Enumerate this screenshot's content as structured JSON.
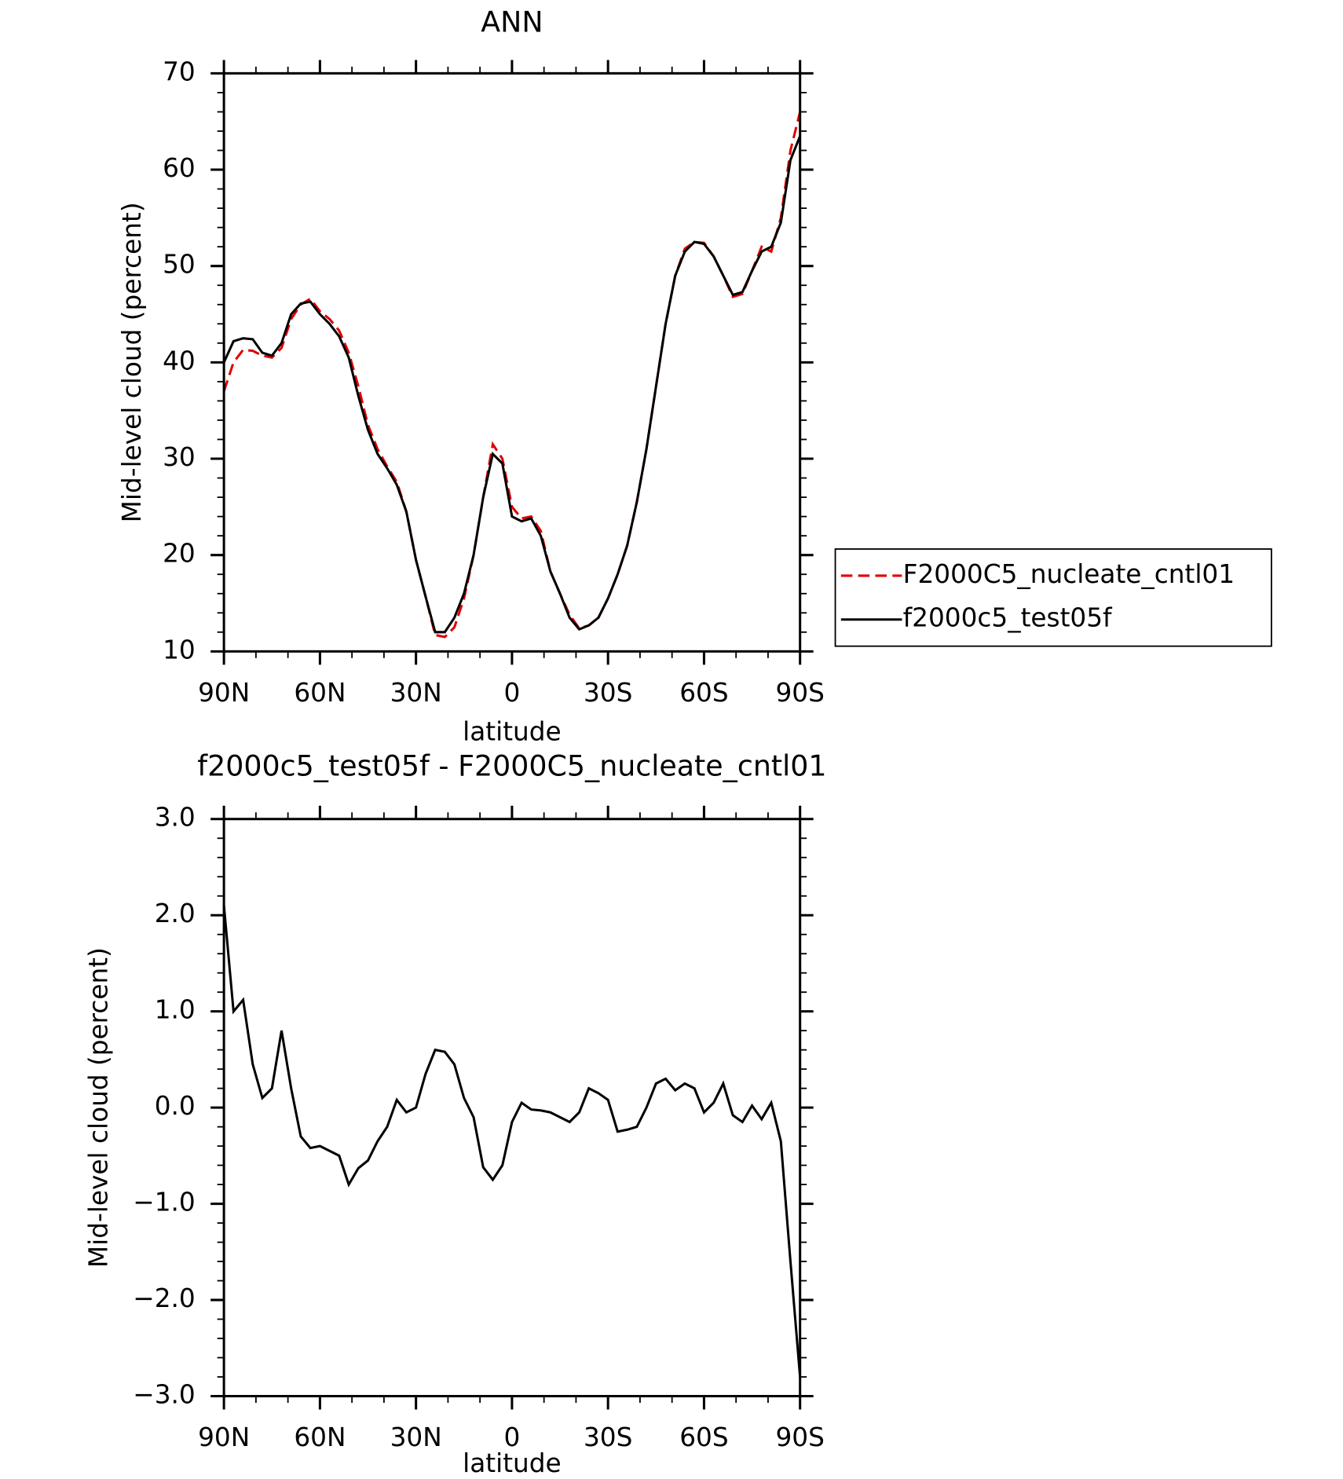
{
  "chart_data": [
    {
      "type": "line",
      "title": "ANN",
      "xlabel": "latitude",
      "ylabel": "Mid-level cloud (percent)",
      "x": [
        90,
        87,
        84,
        81,
        78,
        75,
        72,
        69,
        66,
        63,
        60,
        57,
        54,
        51,
        48,
        45,
        42,
        39,
        36,
        33,
        30,
        27,
        24,
        21,
        18,
        15,
        12,
        9,
        6,
        3,
        0,
        -3,
        -6,
        -9,
        -12,
        -15,
        -18,
        -21,
        -24,
        -27,
        -30,
        -33,
        -36,
        -39,
        -42,
        -45,
        -48,
        -51,
        -54,
        -57,
        -60,
        -63,
        -66,
        -69,
        -72,
        -75,
        -78,
        -81,
        -84,
        -87,
        -90
      ],
      "xlim": [
        90,
        -90
      ],
      "xticks": [
        {
          "value": 90,
          "label": "90N"
        },
        {
          "value": 60,
          "label": "60N"
        },
        {
          "value": 30,
          "label": "30N"
        },
        0,
        {
          "value": -30,
          "label": "30S"
        },
        {
          "value": -60,
          "label": "60S"
        },
        {
          "value": -90,
          "label": "90S"
        }
      ],
      "ylim": [
        10,
        70
      ],
      "yticks": [
        10,
        20,
        30,
        40,
        50,
        60,
        70
      ],
      "grid": false,
      "legend": "right",
      "series": [
        {
          "name": "F2000C5_nucleate_cntl01",
          "color": "#e00000",
          "dash": "dashed",
          "values": [
            37,
            40,
            41.3,
            41.2,
            40.7,
            40.5,
            41.5,
            44.5,
            46,
            46.6,
            45.3,
            44.5,
            43.3,
            41,
            37.5,
            33.5,
            31,
            29.2,
            27.6,
            24.5,
            19.5,
            15.7,
            11.7,
            11.5,
            12.5,
            15.5,
            20,
            26,
            31.5,
            30,
            25,
            23.8,
            24,
            22.5,
            18.3,
            16,
            13.8,
            12.4,
            12.7,
            13.5,
            15.5,
            18,
            21,
            25.5,
            31,
            37.5,
            44,
            49,
            51.8,
            52.5,
            52.4,
            51,
            49,
            46.8,
            47.1,
            49.5,
            52,
            51.5,
            55,
            62,
            66
          ]
        },
        {
          "name": "f2000c5_test05f",
          "color": "#000000",
          "dash": "solid",
          "values": [
            40,
            42.2,
            42.5,
            42.4,
            41,
            40.7,
            42,
            45,
            46.1,
            46.3,
            45,
            44,
            42.7,
            40.5,
            36.5,
            33,
            30.5,
            29,
            27.3,
            24.5,
            19.5,
            15.7,
            12,
            12,
            13.5,
            16,
            20,
            26,
            30.5,
            29.5,
            24,
            23.5,
            23.8,
            22,
            18.3,
            16,
            13.5,
            12.3,
            12.7,
            13.5,
            15.5,
            18,
            21,
            25.5,
            31,
            37.5,
            44,
            49,
            51.5,
            52.5,
            52.3,
            51,
            49,
            47,
            47.3,
            49.5,
            51.5,
            52,
            54.5,
            61,
            63.5
          ]
        }
      ]
    },
    {
      "type": "line",
      "title": "f2000c5_test05f - F2000C5_nucleate_cntl01",
      "xlabel": "latitude",
      "ylabel": "Mid-level cloud (percent)",
      "x": [
        90,
        87,
        84,
        81,
        78,
        75,
        72,
        69,
        66,
        63,
        60,
        57,
        54,
        51,
        48,
        45,
        42,
        39,
        36,
        33,
        30,
        27,
        24,
        21,
        18,
        15,
        12,
        9,
        6,
        3,
        0,
        -3,
        -6,
        -9,
        -12,
        -15,
        -18,
        -21,
        -24,
        -27,
        -30,
        -33,
        -36,
        -39,
        -42,
        -45,
        -48,
        -51,
        -54,
        -57,
        -60,
        -63,
        -66,
        -69,
        -72,
        -75,
        -78,
        -81,
        -84,
        -87,
        -90
      ],
      "xlim": [
        90,
        -90
      ],
      "xticks": [
        {
          "value": 90,
          "label": "90N"
        },
        {
          "value": 60,
          "label": "60N"
        },
        {
          "value": 30,
          "label": "30N"
        },
        0,
        {
          "value": -30,
          "label": "30S"
        },
        {
          "value": -60,
          "label": "60S"
        },
        {
          "value": -90,
          "label": "90S"
        }
      ],
      "ylim": [
        -3,
        3
      ],
      "yticks": [
        {
          "value": -3,
          "label": "−3.0"
        },
        {
          "value": -2,
          "label": "−2.0"
        },
        {
          "value": -1,
          "label": "−1.0"
        },
        {
          "value": 0,
          "label": "0.0"
        },
        {
          "value": 1,
          "label": "1.0"
        },
        {
          "value": 2,
          "label": "2.0"
        },
        {
          "value": 3,
          "label": "3.0"
        }
      ],
      "grid": false,
      "series": [
        {
          "color": "#000000",
          "dash": "solid",
          "values": [
            2.1,
            1.0,
            1.12,
            0.45,
            0.1,
            0.2,
            0.8,
            0.2,
            -0.3,
            -0.42,
            -0.4,
            -0.45,
            -0.5,
            -0.8,
            -0.63,
            -0.55,
            -0.35,
            -0.2,
            0.08,
            -0.05,
            0.0,
            0.35,
            0.6,
            0.58,
            0.45,
            0.1,
            -0.1,
            -0.62,
            -0.75,
            -0.6,
            -0.15,
            0.05,
            -0.02,
            -0.03,
            -0.05,
            -0.1,
            -0.15,
            -0.05,
            0.2,
            0.15,
            0.08,
            -0.25,
            -0.23,
            -0.2,
            0.0,
            0.25,
            0.3,
            0.18,
            0.25,
            0.2,
            -0.05,
            0.05,
            0.25,
            -0.08,
            -0.15,
            0.02,
            -0.12,
            0.05,
            -0.35,
            -1.6,
            -2.8
          ]
        }
      ]
    }
  ]
}
